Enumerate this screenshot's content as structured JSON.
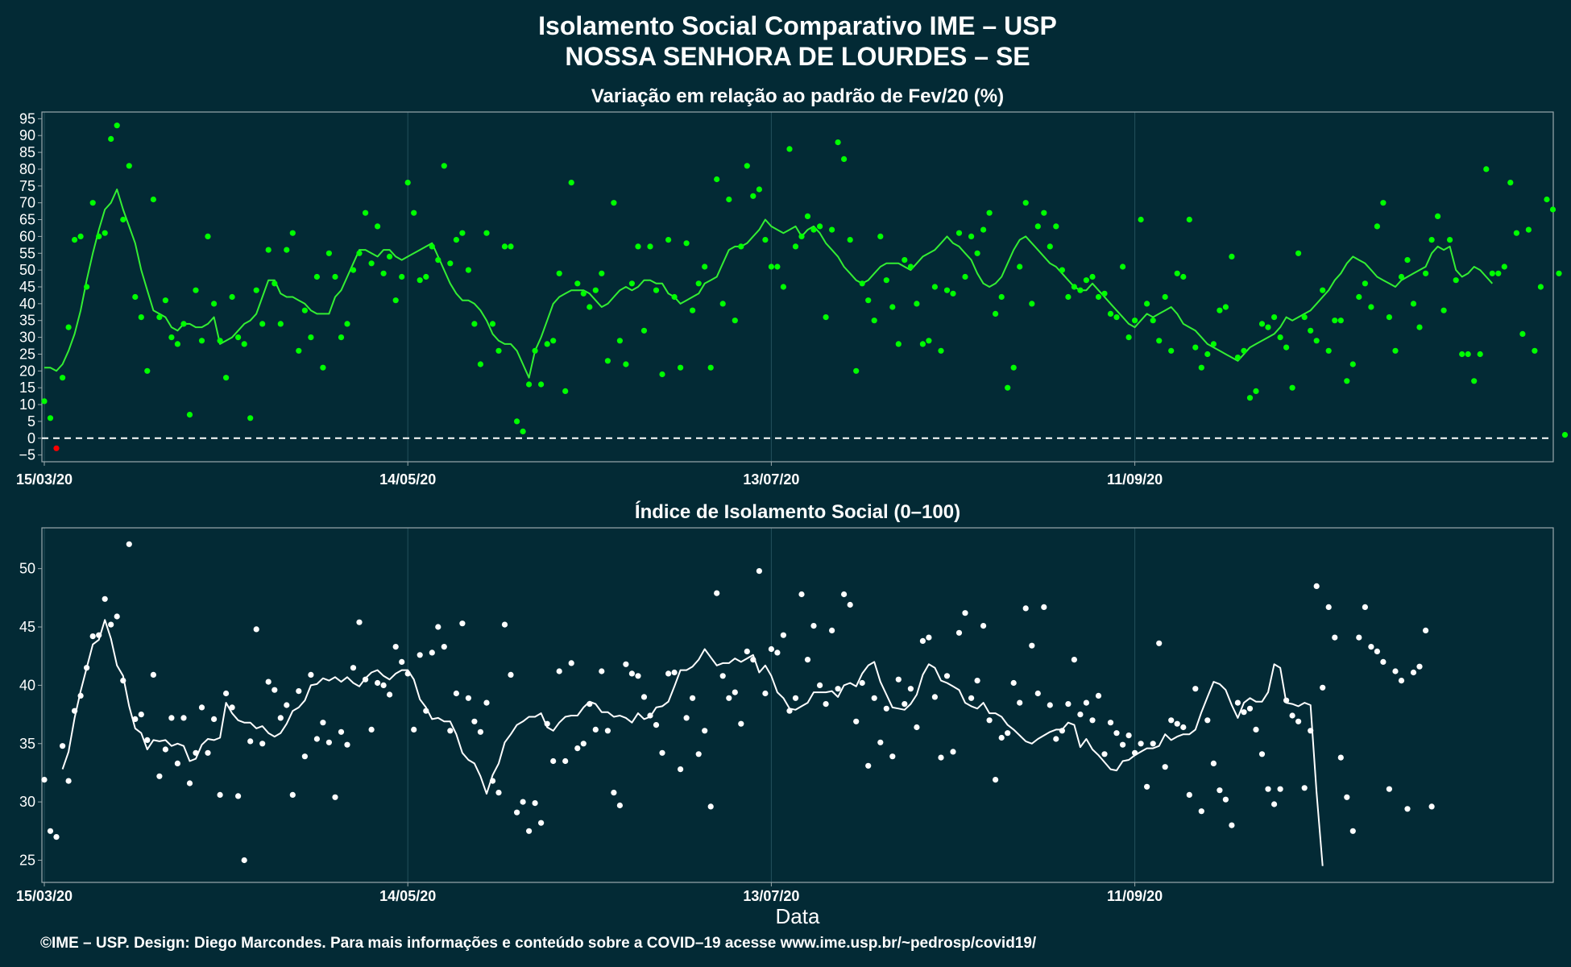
{
  "title_line1": "Isolamento Social Comparativo IME – USP",
  "title_line2": "NOSSA SENHORA DE LOURDES – SE",
  "xlabel": "Data",
  "footer": "©IME – USP. Design: Diego Marcondes. Para mais informações e conteúdo sobre a COVID–19 acesse www.ime.usp.br/~pedrosp/covid19/",
  "colors": {
    "background": "#032a35",
    "panel_border": "#9aa9ad",
    "grid": "#24505c",
    "variation_points": "#00ff00",
    "variation_negative": "#ff0000",
    "variation_line": "#33ee33",
    "index_points": "#ffffff",
    "index_line": "#ffffff",
    "zero_line": "#ffffff"
  },
  "chart_data": [
    {
      "type": "scatter",
      "title": "Variação em relação ao padrão de Fev/20 (%)",
      "x_start": "15/03/20",
      "x_tick_labels": [
        "15/03/20",
        "14/05/20",
        "13/07/20",
        "11/09/20"
      ],
      "x_tick_day_index": [
        0,
        60,
        120,
        180
      ],
      "ylim": [
        -7,
        97
      ],
      "yticks": [
        -5,
        0,
        5,
        10,
        15,
        20,
        25,
        30,
        35,
        40,
        45,
        50,
        55,
        60,
        65,
        70,
        75,
        80,
        85,
        90,
        95
      ],
      "reference_line": 0,
      "series": [
        {
          "kind": "points",
          "values": [
            11,
            6,
            -3,
            18,
            33,
            59,
            60,
            45,
            70,
            60,
            61,
            89,
            93,
            65,
            81,
            42,
            36,
            20,
            71,
            36,
            41,
            30,
            28,
            34,
            7,
            44,
            29,
            60,
            40,
            29,
            18,
            42,
            30,
            28,
            6,
            44,
            34,
            56,
            46,
            34,
            56,
            61,
            26,
            38,
            30,
            48,
            21,
            55,
            48,
            30,
            34,
            50,
            55,
            67,
            52,
            63,
            49,
            54,
            41,
            48,
            76,
            67,
            47,
            48,
            57,
            53,
            81,
            52,
            59,
            61,
            50,
            34,
            22,
            61,
            34,
            26,
            57,
            57,
            5,
            2,
            16,
            26,
            16,
            28,
            29,
            49,
            14,
            76,
            46,
            43,
            39,
            44,
            49,
            23,
            70,
            29,
            22,
            46,
            57,
            32,
            57,
            44,
            19,
            59,
            42,
            21,
            58,
            38,
            46,
            51,
            21,
            77,
            40,
            71,
            35,
            57,
            81,
            72,
            74,
            59,
            51,
            51,
            45,
            86,
            57,
            60,
            66,
            62,
            63,
            36,
            62,
            88,
            83,
            59,
            20,
            46,
            41,
            35,
            60,
            47,
            39,
            28,
            53,
            51,
            40,
            28,
            29,
            45,
            26,
            44,
            43,
            61,
            48,
            60,
            55,
            62,
            67,
            37,
            42,
            15,
            21,
            51,
            70,
            40,
            63,
            67,
            57,
            63,
            50,
            42,
            45,
            44,
            47,
            48,
            42,
            43,
            37,
            36,
            51,
            30,
            35,
            65,
            40,
            35,
            29,
            42,
            26,
            49,
            48,
            65,
            27,
            21,
            25,
            28,
            38,
            39,
            54,
            24,
            26,
            12,
            14,
            34,
            33,
            36,
            30,
            27,
            15,
            55,
            36,
            32,
            29,
            44,
            26,
            35,
            35,
            17,
            22,
            42,
            46,
            39,
            63,
            70,
            36,
            26,
            48,
            53,
            40,
            33,
            49,
            59,
            66,
            38,
            59,
            47,
            25,
            25,
            17,
            25,
            80,
            49,
            49,
            51,
            76,
            61,
            31,
            62,
            26,
            45,
            71,
            68,
            49,
            1
          ]
        },
        {
          "kind": "moving_average_7d",
          "start_index": 0,
          "values": [
            21,
            21,
            20,
            22,
            26,
            31,
            38,
            47,
            55,
            62,
            68,
            70,
            74,
            68,
            63,
            58,
            50,
            44,
            38,
            37,
            36,
            33,
            32,
            34,
            34,
            33,
            33,
            34,
            36,
            28,
            29,
            30,
            32,
            34,
            35,
            37,
            42,
            47,
            47,
            43,
            42,
            42,
            41,
            40,
            38,
            37,
            37,
            37,
            42,
            44,
            48,
            52,
            56,
            56,
            55,
            54,
            56,
            56,
            54,
            53,
            54,
            55,
            56,
            57,
            58,
            54,
            50,
            46,
            43,
            41,
            41,
            40,
            38,
            35,
            31,
            29,
            28,
            28,
            26,
            22,
            18,
            26,
            30,
            35,
            40,
            42,
            43,
            44,
            44,
            44,
            43,
            41,
            39,
            40,
            42,
            44,
            45,
            44,
            45,
            47,
            47,
            46,
            46,
            43,
            42,
            40,
            41,
            42,
            43,
            46,
            47,
            48,
            52,
            56,
            57,
            57,
            58,
            60,
            62,
            65,
            63,
            62,
            61,
            62,
            63,
            60,
            62,
            63,
            61,
            58,
            56,
            54,
            51,
            49,
            47,
            46,
            47,
            49,
            51,
            52,
            52,
            52,
            51,
            50,
            52,
            54,
            55,
            56,
            58,
            60,
            58,
            57,
            55,
            53,
            49,
            46,
            45,
            46,
            48,
            52,
            56,
            59,
            60,
            58,
            56,
            54,
            52,
            51,
            49,
            47,
            45,
            44,
            44,
            46,
            44,
            42,
            40,
            38,
            36,
            34,
            33,
            35,
            37,
            36,
            37,
            38,
            39,
            37,
            34,
            33,
            32,
            30,
            28,
            27,
            26,
            25,
            24,
            23,
            25,
            27,
            28,
            29,
            30,
            31,
            33,
            36,
            35,
            36,
            37,
            38,
            40,
            42,
            44,
            47,
            49,
            52,
            54,
            53,
            52,
            50,
            48,
            47,
            46,
            45,
            47,
            48,
            49,
            50,
            51,
            55,
            57,
            56,
            57,
            50,
            48,
            49,
            51,
            50,
            48,
            46
          ]
        }
      ]
    },
    {
      "type": "scatter",
      "title": "Índice de Isolamento Social (0–100)",
      "x_start": "15/03/20",
      "x_tick_labels": [
        "15/03/20",
        "14/05/20",
        "13/07/20",
        "11/09/20"
      ],
      "x_tick_day_index": [
        0,
        60,
        120,
        180
      ],
      "ylim": [
        23.1,
        53.5
      ],
      "yticks": [
        25,
        30,
        35,
        40,
        45,
        50
      ],
      "series": [
        {
          "kind": "points",
          "values": [
            31.9,
            27.5,
            27.0,
            34.8,
            31.8,
            37.8,
            39.1,
            41.5,
            44.2,
            44.3,
            47.4,
            45.2,
            45.9,
            40.4,
            52.1,
            37.1,
            37.5,
            35.3,
            40.9,
            32.2,
            34.5,
            37.2,
            33.3,
            37.2,
            31.6,
            34.2,
            38.1,
            34.2,
            37.1,
            30.6,
            39.3,
            38.1,
            30.5,
            25.0,
            35.2,
            44.8,
            35.0,
            40.3,
            39.6,
            37.2,
            38.3,
            30.6,
            39.5,
            33.9,
            40.9,
            35.4,
            36.8,
            35.1,
            30.4,
            36.0,
            34.9,
            41.5,
            45.4,
            40.5,
            36.2,
            40.2,
            40.0,
            39.2,
            43.3,
            42.0,
            41.0,
            36.2,
            42.6,
            37.8,
            42.8,
            45.0,
            43.3,
            36.1,
            39.3,
            45.3,
            38.9,
            36.9,
            36.0,
            38.5,
            31.8,
            30.8,
            45.2,
            40.9,
            29.1,
            30.0,
            27.5,
            29.9,
            28.2,
            36.7,
            33.5,
            41.2,
            33.5,
            41.9,
            34.6,
            35.0,
            38.4,
            36.2,
            41.2,
            36.1,
            30.8,
            29.7,
            41.8,
            41.0,
            40.8,
            39.0,
            37.4,
            36.6,
            34.2,
            41.0,
            41.1,
            32.8,
            37.2,
            38.9,
            34.1,
            36.1,
            29.6,
            47.9,
            40.8,
            38.9,
            39.4,
            36.7,
            42.9,
            42.2,
            49.8,
            39.3,
            43.1,
            42.8,
            44.3,
            37.8,
            38.9,
            47.8,
            42.2,
            45.1,
            40.0,
            38.4,
            44.7,
            39.7,
            47.8,
            46.9,
            36.9,
            40.2,
            33.1,
            38.9,
            35.1,
            38.0,
            33.9,
            40.5,
            38.4,
            39.7,
            36.4,
            43.8,
            44.1,
            39.0,
            33.8,
            40.8,
            34.3,
            44.5,
            46.2,
            38.9,
            40.4,
            45.1,
            37.0,
            31.9,
            35.5,
            35.9,
            40.2,
            38.5,
            46.6,
            43.4,
            39.3,
            46.7,
            38.3,
            35.4,
            36.1,
            38.4,
            42.2,
            37.5,
            38.5,
            37.0,
            39.1,
            34.1,
            36.8,
            35.9,
            34.9,
            35.7,
            34.2,
            35.0,
            31.3,
            35.0,
            43.6,
            33.0,
            37.0,
            36.7,
            36.4,
            30.6,
            39.7,
            29.2,
            37.0,
            33.3,
            31.0,
            30.2,
            28.0,
            38.5,
            37.7,
            38.0,
            36.2,
            34.1,
            31.1,
            29.8,
            31.1,
            38.7,
            37.4,
            36.9,
            31.2,
            36.1,
            48.5,
            39.8,
            46.7,
            44.1,
            33.8,
            30.4,
            27.5,
            44.1,
            46.7,
            43.3,
            42.9,
            42.0,
            31.1,
            41.2,
            40.4,
            29.4,
            41.1,
            41.6,
            44.7,
            29.6
          ]
        },
        {
          "kind": "moving_average_7d",
          "start_index": 3,
          "values": [
            32.8,
            34.3,
            37.2,
            39.5,
            41.5,
            43.5,
            43.9,
            45.6,
            44.0,
            41.7,
            40.8,
            38.2,
            36.3,
            35.9,
            34.5,
            35.3,
            35.2,
            35.3,
            34.8,
            35.0,
            34.8,
            33.5,
            33.7,
            34.9,
            35.4,
            35.3,
            35.5,
            38.5,
            37.6,
            37.0,
            36.8,
            36.8,
            36.3,
            36.5,
            35.9,
            35.6,
            35.9,
            36.7,
            37.8,
            38.1,
            38.7,
            40.0,
            40.1,
            40.6,
            40.4,
            40.7,
            40.3,
            40.7,
            40.2,
            39.9,
            40.6,
            41.1,
            41.3,
            40.8,
            40.5,
            41.0,
            41.3,
            41.3,
            40.5,
            38.8,
            38.1,
            37.1,
            37.2,
            36.9,
            36.9,
            35.8,
            34.2,
            33.6,
            33.3,
            32.2,
            30.7,
            32.3,
            33.3,
            35.1,
            35.8,
            36.6,
            36.9,
            37.3,
            37.3,
            37.6,
            36.4,
            36.1,
            36.8,
            37.3,
            37.4,
            37.4,
            38.1,
            38.6,
            38.4,
            37.7,
            37.7,
            37.3,
            37.4,
            37.2,
            36.8,
            37.6,
            37.1,
            37.3,
            38.1,
            38.2,
            38.6,
            39.9,
            41.3,
            41.3,
            41.6,
            42.2,
            43.1,
            42.4,
            41.7,
            41.9,
            41.9,
            42.3,
            42.0,
            42.3,
            42.6,
            41.1,
            41.7,
            40.8,
            39.4,
            38.9,
            38.0,
            37.9,
            38.2,
            38.5,
            39.4,
            39.4,
            39.4,
            39.5,
            39.0,
            40.0,
            40.2,
            39.9,
            41.0,
            41.7,
            42.0,
            40.3,
            39.2,
            38.1,
            38.0,
            37.9,
            38.4,
            39.2,
            40.9,
            41.8,
            41.5,
            40.4,
            40.2,
            39.9,
            39.6,
            38.5,
            38.2,
            38.0,
            38.5,
            37.6,
            37.6,
            37.3,
            36.6,
            36.2,
            35.7,
            35.2,
            35.0,
            35.4,
            35.7,
            36.0,
            36.2,
            36.2,
            36.8,
            36.6,
            34.7,
            35.4,
            34.5,
            34.0,
            33.4,
            32.8,
            32.7,
            33.5,
            33.6,
            34.0,
            34.3,
            34.6,
            34.6,
            34.8,
            35.8,
            35.3,
            35.6,
            35.8,
            35.8,
            36.2,
            37.7,
            39.0,
            40.3,
            40.1,
            39.6,
            38.3,
            37.2,
            38.5,
            38.9,
            38.6,
            38.6,
            39.4,
            41.8,
            41.5,
            38.5,
            38.4,
            38.2,
            38.5,
            38.3,
            30.8,
            24.5
          ]
        }
      ]
    }
  ]
}
